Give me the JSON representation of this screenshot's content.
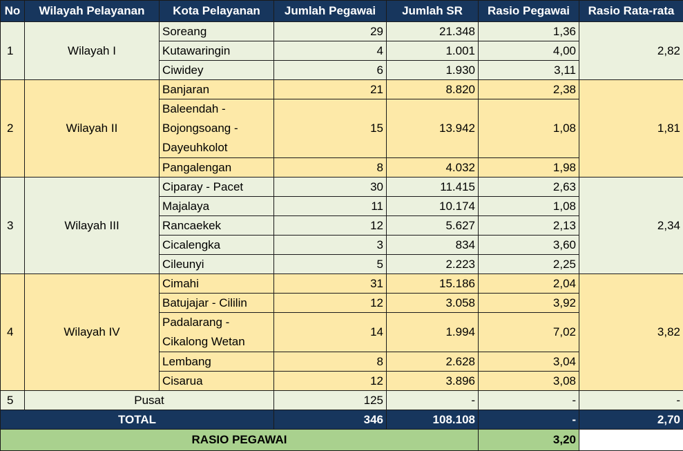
{
  "headers": {
    "no": "No",
    "wilayah": "Wilayah Pelayanan",
    "kota": "Kota Pelayanan",
    "jumlah_pegawai": "Jumlah Pegawai",
    "jumlah_sr": "Jumlah SR",
    "rasio_pegawai": "Rasio Pegawai",
    "rasio_rata": "Rasio Rata-rata"
  },
  "regions": [
    {
      "no": "1",
      "name": "Wilayah I",
      "avg": "2,82",
      "rows": [
        {
          "kota": "Soreang",
          "pegawai": "29",
          "sr": "21.348",
          "rasio": "1,36"
        },
        {
          "kota": "Kutawaringin",
          "pegawai": "4",
          "sr": "1.001",
          "rasio": "4,00"
        },
        {
          "kota": "Ciwidey",
          "pegawai": "6",
          "sr": "1.930",
          "rasio": "3,11"
        }
      ]
    },
    {
      "no": "2",
      "name": "Wilayah II",
      "avg": "1,81",
      "rows": [
        {
          "kota": "Banjaran",
          "pegawai": "21",
          "sr": "8.820",
          "rasio": "2,38"
        },
        {
          "kota": "Baleendah - Bojongsoang - Dayeuhkolot",
          "pegawai": "15",
          "sr": "13.942",
          "rasio": "1,08"
        },
        {
          "kota": "Pangalengan",
          "pegawai": "8",
          "sr": "4.032",
          "rasio": "1,98"
        }
      ]
    },
    {
      "no": "3",
      "name": "Wilayah III",
      "avg": "2,34",
      "rows": [
        {
          "kota": "Ciparay - Pacet",
          "pegawai": "30",
          "sr": "11.415",
          "rasio": "2,63"
        },
        {
          "kota": "Majalaya",
          "pegawai": "11",
          "sr": "10.174",
          "rasio": "1,08"
        },
        {
          "kota": "Rancaekek",
          "pegawai": "12",
          "sr": "5.627",
          "rasio": "2,13"
        },
        {
          "kota": "Cicalengka",
          "pegawai": "3",
          "sr": "834",
          "rasio": "3,60"
        },
        {
          "kota": "Cileunyi",
          "pegawai": "5",
          "sr": "2.223",
          "rasio": "2,25"
        }
      ]
    },
    {
      "no": "4",
      "name": "Wilayah IV",
      "avg": "3,82",
      "rows": [
        {
          "kota": "Cimahi",
          "pegawai": "31",
          "sr": "15.186",
          "rasio": "2,04"
        },
        {
          "kota": "Batujajar - Cililin",
          "pegawai": "12",
          "sr": "3.058",
          "rasio": "3,92"
        },
        {
          "kota": "Padalarang - Cikalong Wetan",
          "pegawai": "14",
          "sr": "1.994",
          "rasio": "7,02"
        },
        {
          "kota": "Lembang",
          "pegawai": "8",
          "sr": "2.628",
          "rasio": "3,04"
        },
        {
          "kota": "Cisarua",
          "pegawai": "12",
          "sr": "3.896",
          "rasio": "3,08"
        }
      ]
    }
  ],
  "pusat": {
    "no": "5",
    "label": "Pusat",
    "pegawai": "125",
    "sr": "-",
    "rasio": "-",
    "avg": "-"
  },
  "total": {
    "label": "TOTAL",
    "pegawai": "346",
    "sr": "108.108",
    "rasio": "-",
    "avg": "2,70"
  },
  "rasio_pegawai": {
    "label": "RASIO PEGAWAI",
    "value": "3,20"
  },
  "colors": {
    "header": "#17365d",
    "row_green": "#ebf1de",
    "row_yellow": "#fde9a8",
    "rasio_green": "#a9d18e"
  }
}
